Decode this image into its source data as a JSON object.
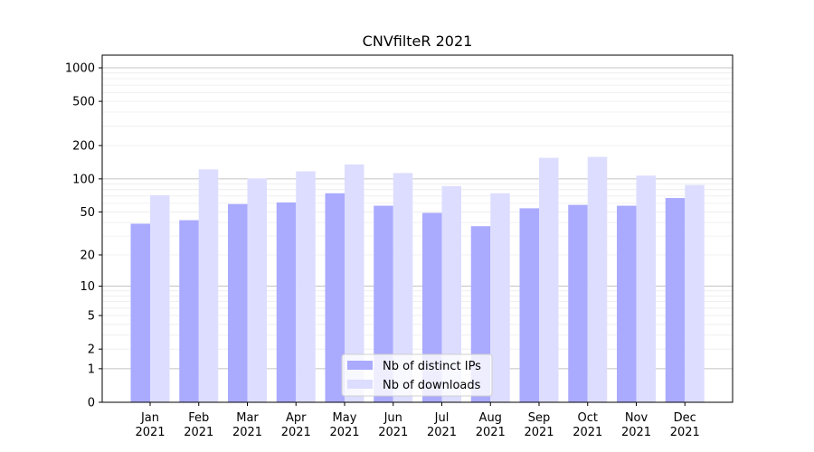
{
  "chart_data": {
    "type": "bar",
    "title": "CNVfilteR 2021",
    "xlabel": "",
    "ylabel": "",
    "yscale": "log1p",
    "ylim": [
      0,
      1300
    ],
    "yticks": [
      0,
      1,
      2,
      5,
      10,
      20,
      50,
      100,
      200,
      500,
      1000
    ],
    "grid": true,
    "legend_position": "bottom-center",
    "categories": [
      "Jan\n2021",
      "Feb\n2021",
      "Mar\n2021",
      "Apr\n2021",
      "May\n2021",
      "Jun\n2021",
      "Jul\n2021",
      "Aug\n2021",
      "Sep\n2021",
      "Oct\n2021",
      "Nov\n2021",
      "Dec\n2021"
    ],
    "series": [
      {
        "name": "Nb of distinct IPs",
        "color": "#aaaaff",
        "values": [
          39,
          42,
          59,
          61,
          74,
          57,
          49,
          37,
          54,
          58,
          57,
          67
        ]
      },
      {
        "name": "Nb of downloads",
        "color": "#ddddff",
        "values": [
          71,
          122,
          101,
          117,
          135,
          113,
          86,
          74,
          155,
          158,
          107,
          88
        ]
      }
    ]
  }
}
